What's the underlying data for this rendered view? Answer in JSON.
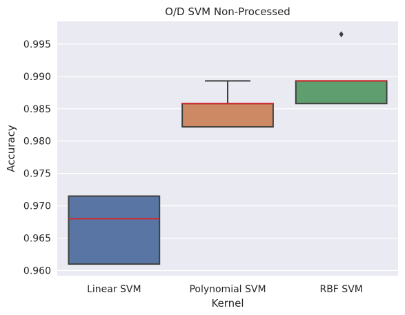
{
  "chart_data": {
    "type": "box",
    "title": "O/D SVM Non-Processed",
    "xlabel": "Kernel",
    "ylabel": "Accuracy",
    "ylim": [
      0.9592,
      0.9985
    ],
    "yticks": [
      0.96,
      0.965,
      0.97,
      0.975,
      0.98,
      0.985,
      0.99,
      0.995
    ],
    "ytick_labels": [
      "0.960",
      "0.965",
      "0.970",
      "0.975",
      "0.980",
      "0.985",
      "0.990",
      "0.995"
    ],
    "categories": [
      "Linear SVM",
      "Polynomial SVM",
      "RBF SVM"
    ],
    "grid": true,
    "boxes": [
      {
        "category": "Linear SVM",
        "color": "#5875a4",
        "whisker_low": 0.961,
        "q1": 0.961,
        "median": 0.968,
        "q3": 0.9715,
        "whisker_high": 0.9715,
        "outliers": []
      },
      {
        "category": "Polynomial SVM",
        "color": "#cc8963",
        "whisker_low": 0.9822,
        "q1": 0.9822,
        "median": 0.9858,
        "q3": 0.9858,
        "whisker_high": 0.9893,
        "outliers": []
      },
      {
        "category": "RBF SVM",
        "color": "#5f9e6e",
        "whisker_low": 0.9858,
        "q1": 0.9858,
        "median": 0.9893,
        "q3": 0.9893,
        "whisker_high": 0.9893,
        "outliers": [
          0.9965
        ]
      }
    ],
    "median_color": "#d62728",
    "edge_color": "#3f3f3f",
    "background": "#eaeaf2"
  }
}
